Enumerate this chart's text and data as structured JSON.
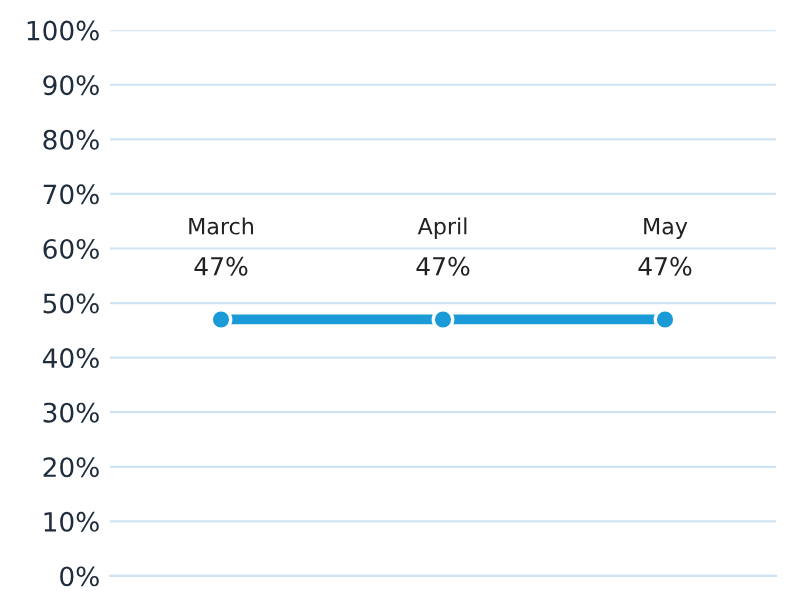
{
  "chart_data": {
    "type": "line",
    "categories": [
      "March",
      "April",
      "May"
    ],
    "series": [
      {
        "color": "#1a9bd7",
        "values": [
          47,
          47,
          47
        ],
        "value_labels": [
          "47%",
          "47%",
          "47%"
        ]
      }
    ],
    "ylim": [
      0,
      100
    ],
    "yticks": [
      {
        "value": 0,
        "label": "0%"
      },
      {
        "value": 10,
        "label": "10%"
      },
      {
        "value": 20,
        "label": "20%"
      },
      {
        "value": 30,
        "label": "30%"
      },
      {
        "value": 40,
        "label": "40%"
      },
      {
        "value": 50,
        "label": "50%"
      },
      {
        "value": 60,
        "label": "60%"
      },
      {
        "value": 70,
        "label": "70%"
      },
      {
        "value": 80,
        "label": "80%"
      },
      {
        "value": 90,
        "label": "90%"
      },
      {
        "value": 100,
        "label": "100%"
      }
    ],
    "grid": "y",
    "marker": "circle",
    "line_style": "solid",
    "tick_labels": "y"
  }
}
